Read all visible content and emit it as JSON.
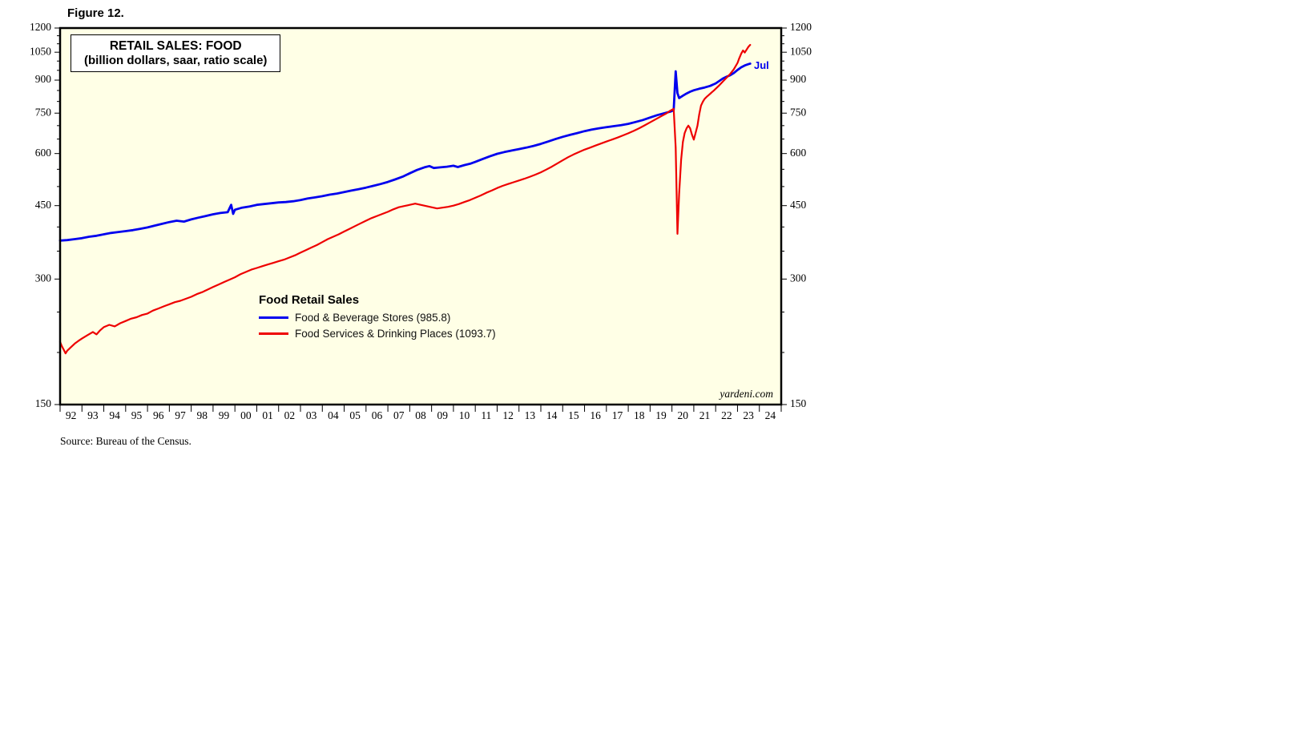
{
  "figure_label": "Figure 12.",
  "title_box": {
    "line1": "RETAIL SALES: FOOD",
    "line2": "(billion dollars, saar, ratio scale)"
  },
  "legend": {
    "title": "Food Retail Sales",
    "items": [
      {
        "label": "Food & Beverage Stores (985.8)",
        "color": "#0000EE"
      },
      {
        "label": "Food Services & Drinking Places (1093.7)",
        "color": "#EE0000"
      }
    ]
  },
  "annotations": {
    "last_point_label": "Jul",
    "watermark": "yardeni.com"
  },
  "source": "Source: Bureau of the Census.",
  "chart_data": {
    "type": "line",
    "title": "RETAIL SALES: FOOD",
    "subtitle": "(billion dollars, saar, ratio scale)",
    "y_scale": "log",
    "ylim": [
      150,
      1200
    ],
    "y_ticks": [
      150,
      300,
      450,
      600,
      750,
      900,
      1050,
      1200
    ],
    "y_minor_step": 50,
    "xlim": [
      1992,
      2025
    ],
    "x_tick_labels": [
      "92",
      "93",
      "94",
      "95",
      "96",
      "97",
      "98",
      "99",
      "00",
      "01",
      "02",
      "03",
      "04",
      "05",
      "06",
      "07",
      "08",
      "09",
      "10",
      "11",
      "12",
      "13",
      "14",
      "15",
      "16",
      "17",
      "18",
      "19",
      "20",
      "21",
      "22",
      "23",
      "24"
    ],
    "plot_bg": "#FFFFE6",
    "grid": false,
    "legend_position": "inside-lower-middle",
    "series": [
      {
        "name": "Food & Beverage Stores",
        "last_value": 985.8,
        "last_period": "Jul",
        "color": "#0000EE",
        "points": [
          [
            1992.0,
            371
          ],
          [
            1992.33,
            372
          ],
          [
            1992.67,
            374
          ],
          [
            1993.0,
            376
          ],
          [
            1993.33,
            379
          ],
          [
            1993.67,
            381
          ],
          [
            1994.0,
            384
          ],
          [
            1994.33,
            387
          ],
          [
            1994.67,
            389
          ],
          [
            1995.0,
            391
          ],
          [
            1995.33,
            393
          ],
          [
            1995.67,
            396
          ],
          [
            1996.0,
            399
          ],
          [
            1996.33,
            403
          ],
          [
            1996.67,
            407
          ],
          [
            1997.0,
            411
          ],
          [
            1997.33,
            414
          ],
          [
            1997.67,
            412
          ],
          [
            1998.0,
            417
          ],
          [
            1998.33,
            421
          ],
          [
            1998.67,
            425
          ],
          [
            1999.0,
            429
          ],
          [
            1999.33,
            432
          ],
          [
            1999.67,
            434
          ],
          [
            1999.83,
            452
          ],
          [
            1999.92,
            430
          ],
          [
            2000.0,
            440
          ],
          [
            2000.33,
            445
          ],
          [
            2000.67,
            448
          ],
          [
            2001.0,
            452
          ],
          [
            2001.33,
            454
          ],
          [
            2001.67,
            456
          ],
          [
            2002.0,
            458
          ],
          [
            2002.33,
            459
          ],
          [
            2002.67,
            461
          ],
          [
            2003.0,
            464
          ],
          [
            2003.33,
            468
          ],
          [
            2003.67,
            471
          ],
          [
            2004.0,
            474
          ],
          [
            2004.33,
            478
          ],
          [
            2004.67,
            481
          ],
          [
            2005.0,
            485
          ],
          [
            2005.33,
            489
          ],
          [
            2005.67,
            493
          ],
          [
            2006.0,
            497
          ],
          [
            2006.33,
            502
          ],
          [
            2006.67,
            507
          ],
          [
            2007.0,
            513
          ],
          [
            2007.33,
            520
          ],
          [
            2007.67,
            528
          ],
          [
            2008.0,
            538
          ],
          [
            2008.33,
            548
          ],
          [
            2008.67,
            556
          ],
          [
            2008.9,
            560
          ],
          [
            2009.1,
            554
          ],
          [
            2009.4,
            556
          ],
          [
            2009.7,
            558
          ],
          [
            2010.0,
            561
          ],
          [
            2010.2,
            557
          ],
          [
            2010.5,
            563
          ],
          [
            2010.8,
            568
          ],
          [
            2011.0,
            573
          ],
          [
            2011.33,
            582
          ],
          [
            2011.67,
            591
          ],
          [
            2012.0,
            599
          ],
          [
            2012.33,
            605
          ],
          [
            2012.67,
            610
          ],
          [
            2013.0,
            615
          ],
          [
            2013.33,
            620
          ],
          [
            2013.67,
            626
          ],
          [
            2014.0,
            633
          ],
          [
            2014.33,
            641
          ],
          [
            2014.67,
            650
          ],
          [
            2015.0,
            658
          ],
          [
            2015.33,
            665
          ],
          [
            2015.67,
            672
          ],
          [
            2016.0,
            679
          ],
          [
            2016.33,
            685
          ],
          [
            2016.67,
            690
          ],
          [
            2017.0,
            694
          ],
          [
            2017.33,
            698
          ],
          [
            2017.67,
            702
          ],
          [
            2018.0,
            707
          ],
          [
            2018.33,
            714
          ],
          [
            2018.67,
            722
          ],
          [
            2019.0,
            732
          ],
          [
            2019.33,
            742
          ],
          [
            2019.67,
            750
          ],
          [
            2019.92,
            756
          ],
          [
            2020.08,
            762
          ],
          [
            2020.17,
            945
          ],
          [
            2020.25,
            838
          ],
          [
            2020.33,
            815
          ],
          [
            2020.5,
            826
          ],
          [
            2020.67,
            836
          ],
          [
            2020.83,
            844
          ],
          [
            2021.0,
            851
          ],
          [
            2021.25,
            858
          ],
          [
            2021.5,
            864
          ],
          [
            2021.75,
            872
          ],
          [
            2022.0,
            884
          ],
          [
            2022.17,
            896
          ],
          [
            2022.33,
            908
          ],
          [
            2022.5,
            917
          ],
          [
            2022.67,
            925
          ],
          [
            2022.83,
            936
          ],
          [
            2023.0,
            952
          ],
          [
            2023.17,
            966
          ],
          [
            2023.33,
            976
          ],
          [
            2023.5,
            983
          ],
          [
            2023.58,
            985.8
          ]
        ]
      },
      {
        "name": "Food Services & Drinking Places",
        "last_value": 1093.7,
        "last_period": "Jul",
        "color": "#EE0000",
        "points": [
          [
            1992.0,
            212
          ],
          [
            1992.08,
            207
          ],
          [
            1992.17,
            203
          ],
          [
            1992.25,
            199
          ],
          [
            1992.33,
            202
          ],
          [
            1992.5,
            206
          ],
          [
            1992.67,
            210
          ],
          [
            1992.83,
            213
          ],
          [
            1993.0,
            216
          ],
          [
            1993.25,
            220
          ],
          [
            1993.5,
            224
          ],
          [
            1993.67,
            221
          ],
          [
            1993.83,
            226
          ],
          [
            1994.0,
            230
          ],
          [
            1994.25,
            233
          ],
          [
            1994.5,
            231
          ],
          [
            1994.75,
            235
          ],
          [
            1995.0,
            238
          ],
          [
            1995.25,
            241
          ],
          [
            1995.5,
            243
          ],
          [
            1995.75,
            246
          ],
          [
            1996.0,
            248
          ],
          [
            1996.25,
            252
          ],
          [
            1996.5,
            255
          ],
          [
            1996.75,
            258
          ],
          [
            1997.0,
            261
          ],
          [
            1997.25,
            264
          ],
          [
            1997.5,
            266
          ],
          [
            1997.75,
            269
          ],
          [
            1998.0,
            272
          ],
          [
            1998.25,
            276
          ],
          [
            1998.5,
            279
          ],
          [
            1998.75,
            283
          ],
          [
            1999.0,
            287
          ],
          [
            1999.25,
            291
          ],
          [
            1999.5,
            295
          ],
          [
            1999.75,
            299
          ],
          [
            2000.0,
            303
          ],
          [
            2000.25,
            308
          ],
          [
            2000.5,
            312
          ],
          [
            2000.75,
            316
          ],
          [
            2001.0,
            319
          ],
          [
            2001.25,
            322
          ],
          [
            2001.5,
            325
          ],
          [
            2001.75,
            328
          ],
          [
            2002.0,
            331
          ],
          [
            2002.25,
            334
          ],
          [
            2002.5,
            338
          ],
          [
            2002.75,
            342
          ],
          [
            2003.0,
            347
          ],
          [
            2003.25,
            352
          ],
          [
            2003.5,
            357
          ],
          [
            2003.75,
            362
          ],
          [
            2004.0,
            368
          ],
          [
            2004.25,
            374
          ],
          [
            2004.5,
            379
          ],
          [
            2004.75,
            384
          ],
          [
            2005.0,
            390
          ],
          [
            2005.25,
            396
          ],
          [
            2005.5,
            402
          ],
          [
            2005.75,
            408
          ],
          [
            2006.0,
            414
          ],
          [
            2006.25,
            420
          ],
          [
            2006.5,
            425
          ],
          [
            2006.75,
            430
          ],
          [
            2007.0,
            435
          ],
          [
            2007.25,
            441
          ],
          [
            2007.5,
            446
          ],
          [
            2007.75,
            449
          ],
          [
            2008.0,
            452
          ],
          [
            2008.25,
            455
          ],
          [
            2008.5,
            452
          ],
          [
            2008.75,
            449
          ],
          [
            2009.0,
            446
          ],
          [
            2009.25,
            443
          ],
          [
            2009.5,
            445
          ],
          [
            2009.75,
            447
          ],
          [
            2010.0,
            450
          ],
          [
            2010.25,
            454
          ],
          [
            2010.5,
            459
          ],
          [
            2010.75,
            464
          ],
          [
            2011.0,
            470
          ],
          [
            2011.25,
            476
          ],
          [
            2011.5,
            483
          ],
          [
            2011.75,
            489
          ],
          [
            2012.0,
            496
          ],
          [
            2012.25,
            502
          ],
          [
            2012.5,
            507
          ],
          [
            2012.75,
            512
          ],
          [
            2013.0,
            517
          ],
          [
            2013.25,
            522
          ],
          [
            2013.5,
            528
          ],
          [
            2013.75,
            534
          ],
          [
            2014.0,
            541
          ],
          [
            2014.25,
            549
          ],
          [
            2014.5,
            558
          ],
          [
            2014.75,
            568
          ],
          [
            2015.0,
            578
          ],
          [
            2015.25,
            588
          ],
          [
            2015.5,
            597
          ],
          [
            2015.75,
            605
          ],
          [
            2016.0,
            613
          ],
          [
            2016.25,
            620
          ],
          [
            2016.5,
            627
          ],
          [
            2016.75,
            634
          ],
          [
            2017.0,
            641
          ],
          [
            2017.25,
            648
          ],
          [
            2017.5,
            655
          ],
          [
            2017.75,
            663
          ],
          [
            2018.0,
            671
          ],
          [
            2018.25,
            680
          ],
          [
            2018.5,
            690
          ],
          [
            2018.75,
            701
          ],
          [
            2019.0,
            713
          ],
          [
            2019.25,
            725
          ],
          [
            2019.5,
            737
          ],
          [
            2019.75,
            749
          ],
          [
            2019.92,
            760
          ],
          [
            2020.08,
            768
          ],
          [
            2020.17,
            620
          ],
          [
            2020.25,
            385
          ],
          [
            2020.33,
            480
          ],
          [
            2020.42,
            580
          ],
          [
            2020.5,
            640
          ],
          [
            2020.58,
            672
          ],
          [
            2020.67,
            690
          ],
          [
            2020.75,
            700
          ],
          [
            2020.83,
            690
          ],
          [
            2020.92,
            665
          ],
          [
            2021.0,
            648
          ],
          [
            2021.08,
            672
          ],
          [
            2021.17,
            700
          ],
          [
            2021.25,
            745
          ],
          [
            2021.33,
            782
          ],
          [
            2021.42,
            800
          ],
          [
            2021.5,
            812
          ],
          [
            2021.58,
            820
          ],
          [
            2021.67,
            828
          ],
          [
            2021.75,
            835
          ],
          [
            2021.83,
            842
          ],
          [
            2021.92,
            850
          ],
          [
            2022.0,
            858
          ],
          [
            2022.17,
            875
          ],
          [
            2022.33,
            893
          ],
          [
            2022.5,
            912
          ],
          [
            2022.67,
            932
          ],
          [
            2022.83,
            955
          ],
          [
            2023.0,
            990
          ],
          [
            2023.08,
            1015
          ],
          [
            2023.17,
            1042
          ],
          [
            2023.25,
            1060
          ],
          [
            2023.33,
            1048
          ],
          [
            2023.42,
            1066
          ],
          [
            2023.5,
            1082
          ],
          [
            2023.58,
            1093.7
          ]
        ]
      }
    ]
  }
}
